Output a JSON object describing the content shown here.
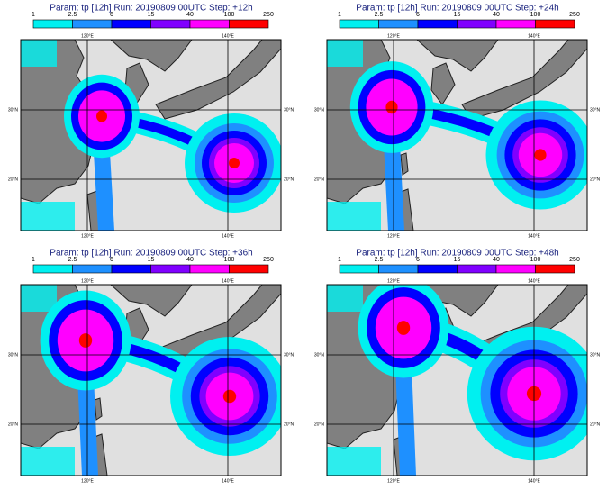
{
  "panels": [
    {
      "title": "Param: tp [12h]  Run: 20190809 00UTC  Step: +12h"
    },
    {
      "title": "Param: tp [12h]  Run: 20190809 00UTC  Step: +24h"
    },
    {
      "title": "Param: tp [12h]  Run: 20190809 00UTC  Step: +36h"
    },
    {
      "title": "Param: tp [12h]  Run: 20190809 00UTC  Step: +48h"
    }
  ],
  "colorbar": {
    "labels": [
      1,
      2.5,
      6,
      15,
      40,
      100,
      250
    ],
    "colors": [
      "#00f0f0",
      "#1e90ff",
      "#0000ff",
      "#8000ff",
      "#ff00ff",
      "#ff0000"
    ]
  },
  "lon_labels": [
    "120°E",
    "140°E"
  ],
  "lat_labels": [
    "30°N",
    "20°N"
  ]
}
